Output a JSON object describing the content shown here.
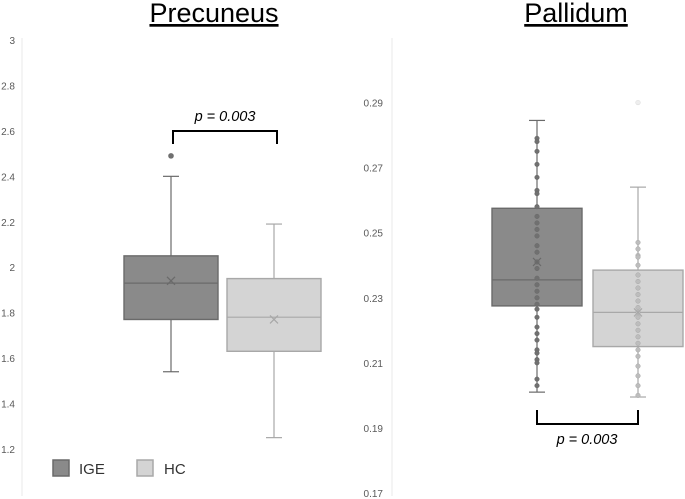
{
  "chart_data": [
    {
      "type": "box",
      "title": "Precuneus",
      "ylim": [
        1.2,
        3
      ],
      "yticks": [
        "1.2",
        "1.4",
        "1.6",
        "1.8",
        "2",
        "2.2",
        "2.4",
        "2.6",
        "2.8",
        "3"
      ],
      "boxes": [
        {
          "name": "IGE",
          "min": 1.54,
          "q1": 1.77,
          "median": 1.93,
          "mean": 1.94,
          "q3": 2.05,
          "max": 2.4,
          "outliers": [
            2.49
          ],
          "points": []
        },
        {
          "name": "HC",
          "min": 1.25,
          "q1": 1.63,
          "median": 1.78,
          "mean": 1.77,
          "q3": 1.95,
          "max": 2.19,
          "outliers": [],
          "points": []
        }
      ],
      "annotation": {
        "text": "p = 0.003",
        "position": "top"
      }
    },
    {
      "type": "box",
      "title": "Pallidum",
      "ylim": [
        0.17,
        0.3
      ],
      "yticks": [
        "0.17",
        "0.19",
        "0.21",
        "0.23",
        "0.25",
        "0.27",
        "0.29"
      ],
      "boxes": [
        {
          "name": "IGE",
          "min": 0.201,
          "q1": 0.2275,
          "median": 0.2355,
          "mean": 0.241,
          "q3": 0.2575,
          "max": 0.2845,
          "outliers": [],
          "points": [
            0.279,
            0.278,
            0.275,
            0.271,
            0.267,
            0.263,
            0.262,
            0.258,
            0.255,
            0.253,
            0.251,
            0.249,
            0.246,
            0.244,
            0.241,
            0.239,
            0.236,
            0.234,
            0.232,
            0.23,
            0.228,
            0.2265,
            0.224,
            0.221,
            0.219,
            0.217,
            0.214,
            0.213,
            0.211,
            0.21,
            0.205,
            0.203
          ]
        },
        {
          "name": "HC",
          "min": 0.1995,
          "q1": 0.215,
          "median": 0.2255,
          "mean": 0.2255,
          "q3": 0.2385,
          "max": 0.264,
          "outliers": [
            0.29
          ],
          "points": [
            0.247,
            0.245,
            0.243,
            0.2425,
            0.24,
            0.237,
            0.235,
            0.233,
            0.231,
            0.229,
            0.227,
            0.2255,
            0.224,
            0.222,
            0.22,
            0.218,
            0.216,
            0.214,
            0.212,
            0.209,
            0.206,
            0.203,
            0.2
          ]
        }
      ],
      "annotation": {
        "text": "p = 0.003",
        "position": "bottom"
      }
    }
  ],
  "legend": [
    {
      "label": "IGE",
      "color": "#8a8a8a",
      "border": "#6a6a6a"
    },
    {
      "label": "HC",
      "color": "#d4d4d4",
      "border": "#a8a8a8"
    }
  ],
  "colors": {
    "ige_fill": "#8a8a8a",
    "ige_stroke": "#6a6a6a",
    "ige_dot": "#707070",
    "hc_fill": "#d4d4d4",
    "hc_stroke": "#a8a8a8",
    "hc_dot": "#bdbdbd"
  }
}
